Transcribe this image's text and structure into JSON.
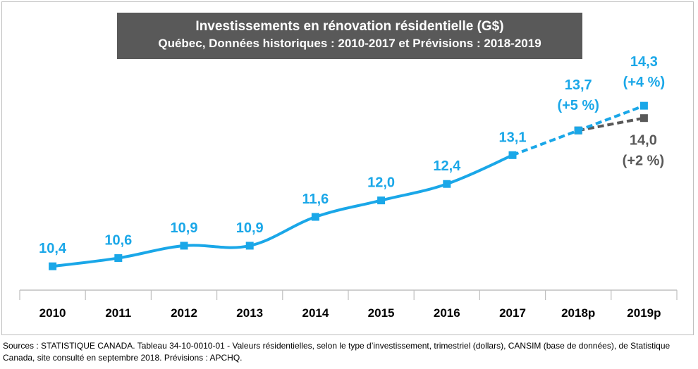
{
  "title": "Investissements en rénovation résidentielle (G$)",
  "subtitle": "Québec, Données historiques : 2010-2017 et Prévisions : 2018-2019",
  "source": "Sources : STATISTIQUE CANADA. Tableau 34-10-0010-01 - Valeurs résidentielles, selon le type d’investissement, trimestriel (dollars), CANSIM (base de données), de Statistique Canada, site consulté en septembre 2018. Prévisions : APCHQ.",
  "colors": {
    "historical": "#1aa7e8",
    "forecast_low": "#595959",
    "title_bg": "#595959"
  },
  "chart_data": {
    "type": "line",
    "categories": [
      "2010",
      "2011",
      "2012",
      "2013",
      "2014",
      "2015",
      "2016",
      "2017",
      "2018p",
      "2019p"
    ],
    "series": [
      {
        "values": [
          10.4,
          10.6,
          10.9,
          10.9,
          11.6,
          12.0,
          12.4,
          13.1,
          13.7,
          14.3
        ],
        "labels": [
          "10,4",
          "10,6",
          "10,9",
          "10,9",
          "11,6",
          "12,0",
          "12,4",
          "13,1",
          "13,7\n(+5 %)",
          "14,3\n(+4 %)"
        ],
        "forecast_from_index": 7
      },
      {
        "values": [
          null,
          null,
          null,
          null,
          null,
          null,
          null,
          null,
          13.7,
          14.0
        ],
        "labels": [
          "",
          "",
          "",
          "",
          "",
          "",
          "",
          "",
          "",
          "14,0\n(+2 %)"
        ],
        "forecast_from_index": 8
      }
    ],
    "ylim": [
      9.0,
      15.5
    ],
    "grid": false,
    "legend": "none"
  }
}
